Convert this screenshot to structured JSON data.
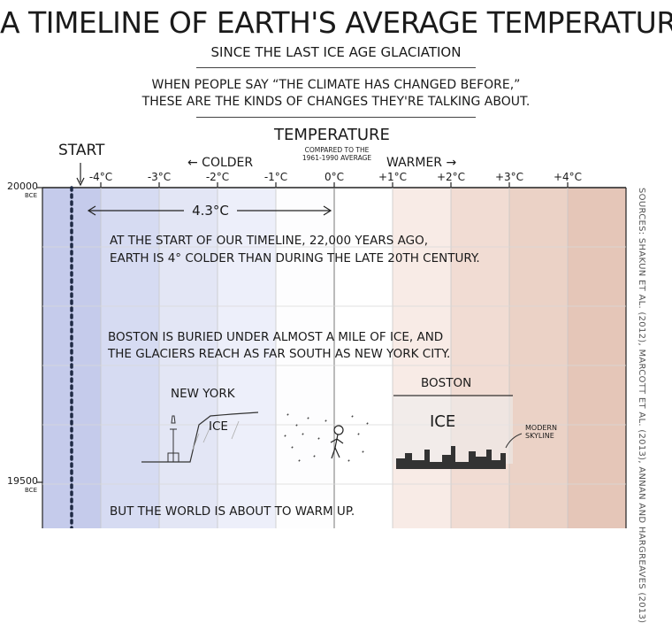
{
  "header": {
    "title": "A Timeline of Earth's Average Temperature",
    "subtitle": "Since the last ice age glaciation",
    "intro_line1": "When people say “the climate has changed before,”",
    "intro_line2": "these are the kinds of changes they're talking about."
  },
  "axis": {
    "title": "Temperature",
    "note_line1": "compared to the",
    "note_line2": "1961-1990 average",
    "colder_label": "← Colder",
    "warmer_label": "Warmer →",
    "start_label": "Start"
  },
  "chart_data": {
    "type": "line",
    "title": "A Timeline of Earth's Average Temperature",
    "xlabel": "Temperature",
    "x_tick_labels": [
      "-4°C",
      "-3°C",
      "-2°C",
      "-1°C",
      "0°C",
      "+1°C",
      "+2°C",
      "+3°C",
      "+4°C"
    ],
    "x_ticks": [
      -4,
      -3,
      -2,
      -1,
      0,
      1,
      2,
      3,
      4
    ],
    "xlim": [
      -5,
      5
    ],
    "y_tick_labels": [
      "20000",
      "19500"
    ],
    "y_ticks": [
      20000,
      19500
    ],
    "y_unit": "BCE",
    "series": [
      {
        "x": [
          -4.5,
          -4.5
        ],
        "y": [
          20000,
          19420
        ]
      }
    ],
    "grid": true,
    "band_colors": [
      "#c5cbeb",
      "#d6dbf2",
      "#e3e6f5",
      "#edeffa",
      "#fdfdfe",
      "#ffffff",
      "#f8ebe6",
      "#f1dcd3",
      "#ebd2c6",
      "#e5c6b8"
    ]
  },
  "annotations": {
    "difference": "4.3°C",
    "fact1_line1": "At the start of our timeline, 22,000 years ago,",
    "fact1_line2": "Earth is 4° colder than during the late 20th century.",
    "fact2_line1": "Boston is buried under almost a mile of ice, and",
    "fact2_line2": "the glaciers reach as far south as New York City.",
    "new_york": "New York",
    "ice_ny": "Ice",
    "boston": "Boston",
    "ice_boston": "Ice",
    "skyline_line1": "Modern",
    "skyline_line2": "skyline",
    "fact3": "But the world is about to warm up."
  },
  "sources": "Sources: Shakun et al. (2012), Marcott et al. (2013), Annan and Hargreaves (2013)"
}
